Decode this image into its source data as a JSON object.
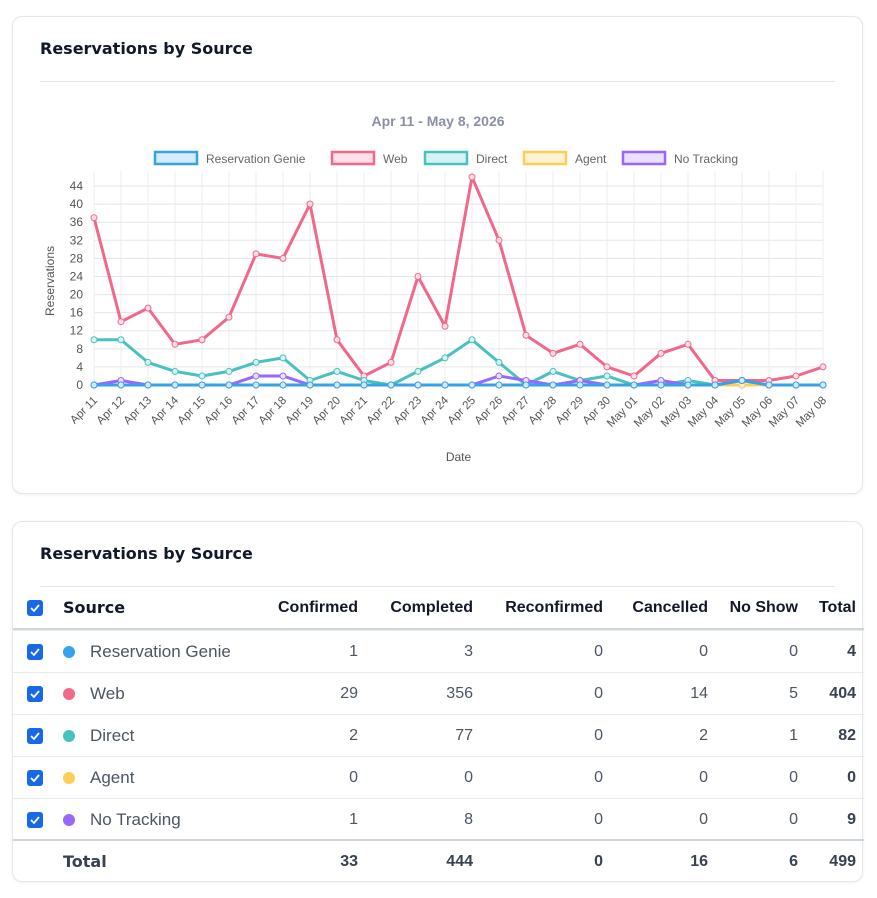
{
  "chart_card": {
    "title": "Reservations by Source"
  },
  "chart_data": {
    "type": "line",
    "title": "Apr 11 - May 8, 2026",
    "xlabel": "Date",
    "ylabel": "Reservations",
    "ylim": [
      0,
      46
    ],
    "yticks": [
      0,
      4,
      8,
      12,
      16,
      20,
      24,
      28,
      32,
      36,
      40,
      44
    ],
    "grid": true,
    "legend_position": "top",
    "categories": [
      "Apr 11",
      "Apr 12",
      "Apr 13",
      "Apr 14",
      "Apr 15",
      "Apr 16",
      "Apr 17",
      "Apr 18",
      "Apr 19",
      "Apr 20",
      "Apr 21",
      "Apr 22",
      "Apr 23",
      "Apr 24",
      "Apr 25",
      "Apr 26",
      "Apr 27",
      "Apr 28",
      "Apr 29",
      "Apr 30",
      "May 01",
      "May 02",
      "May 03",
      "May 04",
      "May 05",
      "May 06",
      "May 07",
      "May 08"
    ],
    "series": [
      {
        "name": "Web",
        "color": "#f0688a",
        "fill": "#fde0e7",
        "values": [
          37,
          14,
          17,
          9,
          10,
          15,
          29,
          28,
          40,
          10,
          2,
          5,
          24,
          13,
          46,
          32,
          11,
          7,
          9,
          4,
          2,
          7,
          9,
          1,
          1,
          1,
          2,
          4
        ]
      },
      {
        "name": "Direct",
        "color": "#4bc0c0",
        "fill": "#d6f2f2",
        "values": [
          10,
          10,
          5,
          3,
          2,
          3,
          5,
          6,
          1,
          3,
          1,
          0,
          3,
          6,
          10,
          5,
          0,
          3,
          1,
          2,
          0,
          0,
          1,
          0,
          0,
          0,
          0,
          0
        ]
      },
      {
        "name": "Agent",
        "color": "#ffcd56",
        "fill": "#fff3d6",
        "values": [
          0,
          0,
          0,
          0,
          0,
          0,
          0,
          0,
          0,
          0,
          0,
          0,
          0,
          0,
          0,
          0,
          0,
          0,
          0,
          0,
          0,
          0,
          0,
          0,
          0,
          0,
          0,
          0
        ]
      },
      {
        "name": "No Tracking",
        "color": "#9966ff",
        "fill": "#ebe0ff",
        "values": [
          0,
          1,
          0,
          0,
          0,
          0,
          2,
          2,
          0,
          0,
          0,
          0,
          0,
          0,
          0,
          2,
          1,
          0,
          1,
          0,
          0,
          1,
          0,
          0,
          1,
          0,
          0,
          0
        ]
      },
      {
        "name": "Reservation Genie",
        "color": "#36a2eb",
        "fill": "#d7ecfb",
        "values": [
          0,
          0,
          0,
          0,
          0,
          0,
          0,
          0,
          0,
          0,
          0,
          0,
          0,
          0,
          0,
          0,
          0,
          0,
          0,
          0,
          0,
          0,
          0,
          0,
          1,
          0,
          0,
          0
        ]
      }
    ],
    "legend_order": [
      "Reservation Genie",
      "Web",
      "Direct",
      "Agent",
      "No Tracking"
    ]
  },
  "table_card": {
    "title": "Reservations by Source",
    "headers": {
      "source": "Source",
      "confirmed": "Confirmed",
      "completed": "Completed",
      "reconfirmed": "Reconfirmed",
      "cancelled": "Cancelled",
      "no_show": "No Show",
      "total": "Total"
    },
    "rows": [
      {
        "source": "Reservation Genie",
        "color": "#36a2eb",
        "checked": true,
        "confirmed": "1",
        "completed": "3",
        "reconfirmed": "0",
        "cancelled": "0",
        "no_show": "0",
        "total": "4"
      },
      {
        "source": "Web",
        "color": "#f0688a",
        "checked": true,
        "confirmed": "29",
        "completed": "356",
        "reconfirmed": "0",
        "cancelled": "14",
        "no_show": "5",
        "total": "404"
      },
      {
        "source": "Direct",
        "color": "#4bc0c0",
        "checked": true,
        "confirmed": "2",
        "completed": "77",
        "reconfirmed": "0",
        "cancelled": "2",
        "no_show": "1",
        "total": "82"
      },
      {
        "source": "Agent",
        "color": "#ffcd56",
        "checked": true,
        "confirmed": "0",
        "completed": "0",
        "reconfirmed": "0",
        "cancelled": "0",
        "no_show": "0",
        "total": "0"
      },
      {
        "source": "No Tracking",
        "color": "#9966ff",
        "checked": true,
        "confirmed": "1",
        "completed": "8",
        "reconfirmed": "0",
        "cancelled": "0",
        "no_show": "0",
        "total": "9"
      }
    ],
    "totals": {
      "label": "Total",
      "confirmed": "33",
      "completed": "444",
      "reconfirmed": "0",
      "cancelled": "16",
      "no_show": "6",
      "total": "499"
    }
  }
}
